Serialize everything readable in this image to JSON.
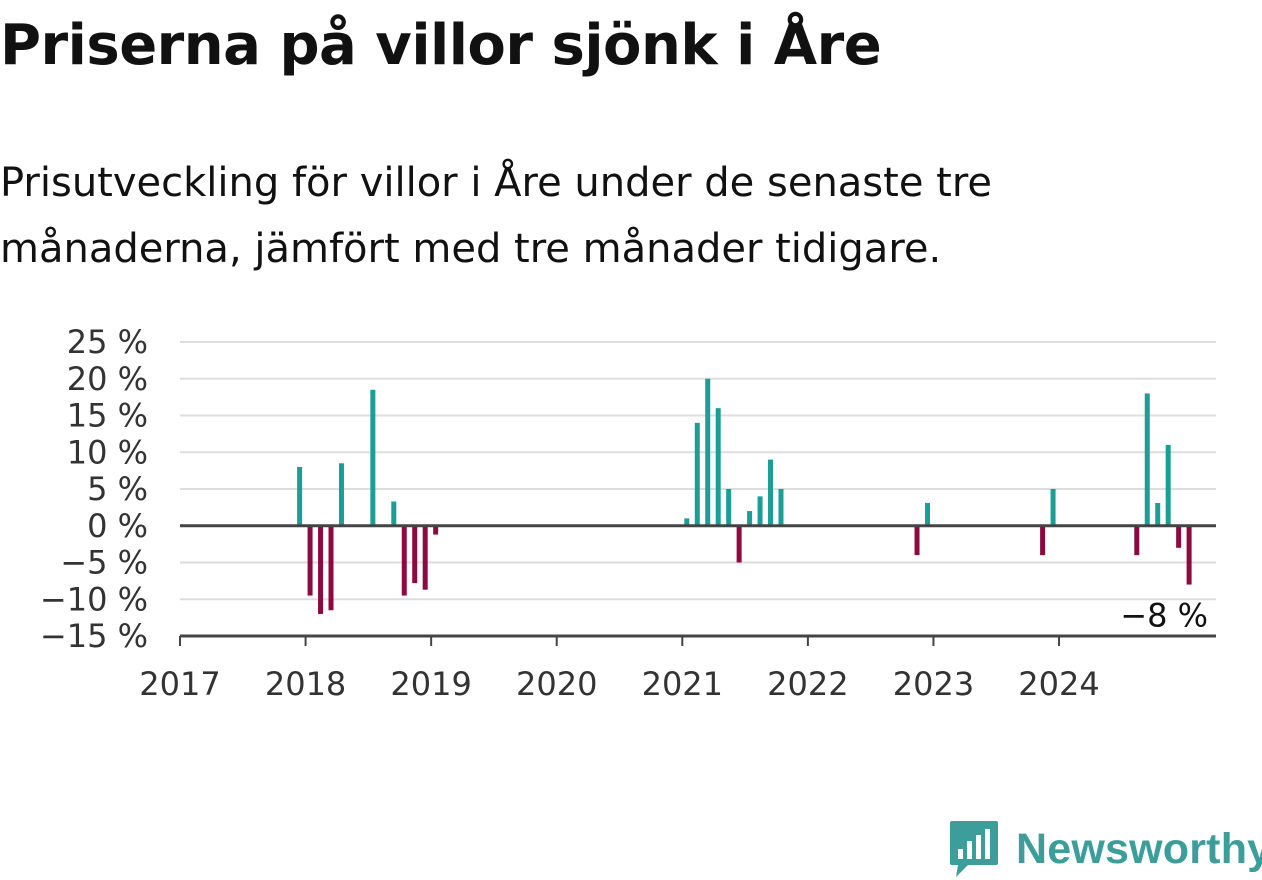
{
  "title": "Priserna på villor sjönk i Åre",
  "subtitle": "Prisutveckling för villor i Åre under de senaste tre månaderna, jämfört med tre månader tidigare.",
  "brand": {
    "name": "Newsworthy",
    "icon": "bar-chart-badge-icon",
    "color": "#3c9e9a"
  },
  "colors": {
    "positive": "#1a9e95",
    "negative": "#8c0a40",
    "grid": "#dddddd",
    "axis": "#444444"
  },
  "chart_data": {
    "type": "bar",
    "title": "Priserna på villor sjönk i Åre",
    "ylabel": "",
    "xlabel": "",
    "ylim": [
      -15,
      25
    ],
    "xlim": [
      "2017-01",
      "2025-04"
    ],
    "grid": true,
    "yticks": [
      25,
      20,
      15,
      10,
      5,
      0,
      -5,
      -10,
      -15
    ],
    "ytick_labels": [
      "25 %",
      "20 %",
      "15 %",
      "10 %",
      "5 %",
      "0 %",
      "−5 %",
      "−10 %",
      "−15 %"
    ],
    "xticks": [
      "2017",
      "2018",
      "2019",
      "2020",
      "2021",
      "2022",
      "2023",
      "2024"
    ],
    "x": [
      "2017-12",
      "2018-01",
      "2018-02",
      "2018-03",
      "2018-04",
      "2018-07",
      "2018-09",
      "2018-10",
      "2018-11",
      "2018-12",
      "2019-01",
      "2021-01",
      "2021-02",
      "2021-03",
      "2021-04",
      "2021-05",
      "2021-06",
      "2021-07",
      "2021-08",
      "2021-09",
      "2021-10",
      "2022-11",
      "2022-12",
      "2023-11",
      "2023-12",
      "2024-08",
      "2024-09",
      "2024-10",
      "2024-11",
      "2024-12",
      "2025-01"
    ],
    "values": [
      8,
      -9.5,
      -12,
      -11.5,
      8.5,
      18.5,
      3.3,
      -9.5,
      -7.8,
      -8.7,
      -1.2,
      1,
      14,
      20,
      16,
      5,
      -5,
      2,
      4,
      9,
      5,
      -4,
      3.1,
      -4,
      5,
      -4,
      18,
      3.1,
      11,
      -3,
      -8
    ],
    "end_label": "−8 %"
  }
}
